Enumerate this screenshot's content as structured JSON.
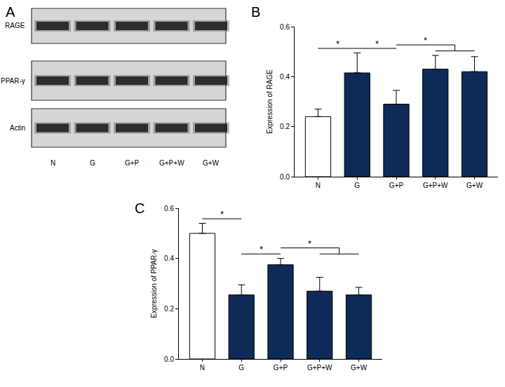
{
  "blot": {
    "label": "A",
    "rows": [
      "RAGE",
      "PPAR-γ",
      "Actin"
    ],
    "lanes": [
      "N",
      "G",
      "G+P",
      "G+P+W",
      "G+W"
    ]
  },
  "chart_data": [
    {
      "type": "bar",
      "title": "B",
      "y_label": "Expression of RAGE",
      "categories": [
        "N",
        "G",
        "G+P",
        "G+P+W",
        "G+W"
      ],
      "values": [
        0.24,
        0.415,
        0.29,
        0.43,
        0.42
      ],
      "errors": [
        0.03,
        0.08,
        0.055,
        0.055,
        0.06
      ],
      "colors": [
        "#ffffff",
        "#0e2a57",
        "#0e2a57",
        "#0e2a57",
        "#0e2a57"
      ],
      "ylim": [
        0,
        0.6
      ],
      "yticks": [
        {
          "value": 0,
          "label": "0.0"
        },
        {
          "value": 0.2,
          "label": "0.2"
        },
        {
          "value": 0.4,
          "label": "0.4"
        },
        {
          "value": 0.6,
          "label": "0.6"
        }
      ],
      "grid": false,
      "annotations": [
        {
          "text": "*",
          "from": "N",
          "to": [
            "G"
          ]
        },
        {
          "text": "*",
          "from": "G",
          "to": [
            "G+P"
          ]
        },
        {
          "text": "*",
          "from": "G+P",
          "to": [
            "G+P+W",
            "G+W"
          ]
        }
      ]
    },
    {
      "type": "bar",
      "title": "C",
      "y_label": "Expression of PPAR-γ",
      "categories": [
        "N",
        "G",
        "G+P",
        "G+P+W",
        "G+W"
      ],
      "values": [
        0.5,
        0.255,
        0.375,
        0.27,
        0.255
      ],
      "errors": [
        0.04,
        0.04,
        0.025,
        0.055,
        0.03
      ],
      "colors": [
        "#ffffff",
        "#0e2a57",
        "#0e2a57",
        "#0e2a57",
        "#0e2a57"
      ],
      "ylim": [
        0,
        0.6
      ],
      "yticks": [
        {
          "value": 0,
          "label": "0.0"
        },
        {
          "value": 0.2,
          "label": "0.2"
        },
        {
          "value": 0.4,
          "label": "0.4"
        },
        {
          "value": 0.6,
          "label": "0.6"
        }
      ],
      "grid": false,
      "annotations": [
        {
          "text": "*",
          "from": "N",
          "to": [
            "G"
          ]
        },
        {
          "text": "*",
          "from": "G",
          "to": [
            "G+P"
          ]
        },
        {
          "text": "*",
          "from": "G+P",
          "to": [
            "G+P+W",
            "G+W"
          ]
        }
      ]
    }
  ]
}
